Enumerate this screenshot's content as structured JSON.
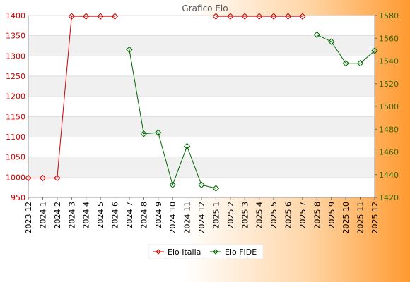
{
  "chart_data": {
    "type": "line",
    "title": "Grafico Elo",
    "categories": [
      "2023 12",
      "2024 1",
      "2024 2",
      "2024 3",
      "2024 4",
      "2024 5",
      "2024 6",
      "2024 7",
      "2024 8",
      "2024 9",
      "2024 10",
      "2024 11",
      "2024 12",
      "2025 1",
      "2025 2",
      "2025 3",
      "2025 4",
      "2025 5",
      "2025 6",
      "2025 7",
      "2025 8",
      "2025 9",
      "2025 10",
      "2025 11",
      "2025 12"
    ],
    "y_left": {
      "ylim": [
        950,
        1400
      ],
      "ticks": [
        950,
        1000,
        1050,
        1100,
        1150,
        1200,
        1250,
        1300,
        1350,
        1400
      ],
      "color": "#cc0000"
    },
    "y_right": {
      "ylim": [
        1420,
        1580
      ],
      "ticks": [
        1420,
        1440,
        1460,
        1480,
        1500,
        1520,
        1540,
        1560,
        1580
      ],
      "color": "#336600"
    },
    "grid": "horizontal-bands",
    "legend_position": "bottom-center",
    "series": [
      {
        "name": "Elo Italia",
        "axis": "left",
        "color": "#cc0000",
        "values": [
          998,
          998,
          998,
          1398,
          1398,
          1398,
          1398,
          null,
          null,
          null,
          null,
          null,
          null,
          1398,
          1398,
          1398,
          1398,
          1398,
          1398,
          1398,
          null,
          null,
          null,
          null,
          null
        ]
      },
      {
        "name": "Elo FIDE",
        "axis": "right",
        "color": "#006600",
        "values": [
          null,
          null,
          null,
          null,
          null,
          null,
          null,
          1550,
          1476,
          1477,
          1431,
          1465,
          1431,
          1428,
          null,
          null,
          null,
          null,
          null,
          null,
          1563,
          1557,
          1538,
          1538,
          1549
        ]
      }
    ]
  }
}
